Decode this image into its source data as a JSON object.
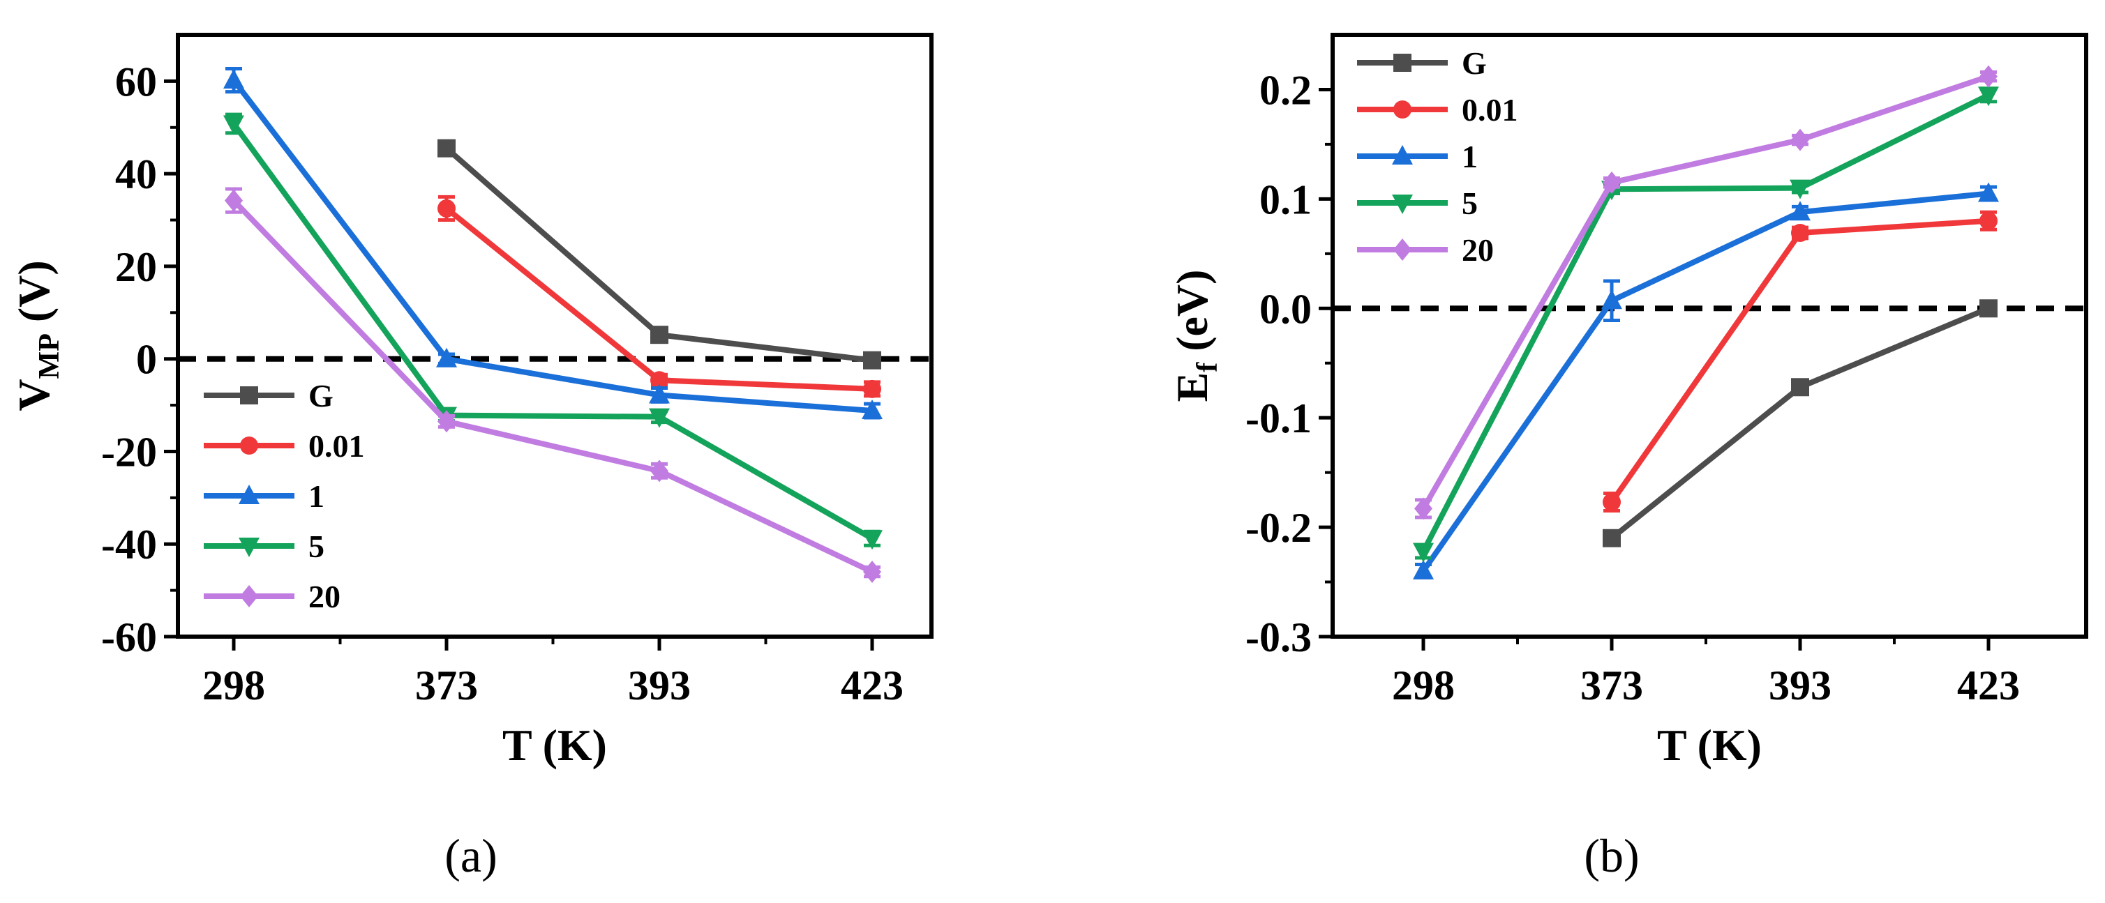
{
  "colors": {
    "G": "#4d4d4d",
    "0.01": "#f0383b",
    "1": "#1a6fd8",
    "5": "#14a35a",
    "20": "#c07ce0",
    "axis": "#000000"
  },
  "chart_data": [
    {
      "type": "line",
      "panel_label": "(a)",
      "title": "",
      "xlabel": "T (K)",
      "ylabel_main": "V",
      "ylabel_sub": "MP",
      "ylabel_unit": " (V)",
      "categories": [
        "298",
        "373",
        "393",
        "423"
      ],
      "ylim": [
        -60,
        70
      ],
      "yticks": [
        -60,
        -40,
        -20,
        0,
        20,
        40,
        60
      ],
      "ytick_labels": [
        "-60",
        "-40",
        "-20",
        "0",
        "20",
        "40",
        "60"
      ],
      "reference_line": 0,
      "legend_position": "lower-left",
      "series": [
        {
          "name": "G",
          "marker": "square",
          "values": [
            null,
            45.5,
            5.2,
            -0.3
          ],
          "errors": [
            null,
            1.2,
            1.0,
            0.5
          ]
        },
        {
          "name": "0.01",
          "marker": "circle",
          "values": [
            null,
            32.5,
            -4.6,
            -6.5
          ],
          "errors": [
            null,
            2.5,
            1.2,
            1.5
          ]
        },
        {
          "name": "1",
          "marker": "triangle-up",
          "values": [
            60.2,
            0.0,
            -7.8,
            -11.2
          ],
          "errors": [
            2.5,
            1.0,
            1.5,
            1.5
          ]
        },
        {
          "name": "5",
          "marker": "triangle-down",
          "values": [
            50.8,
            -12.2,
            -12.5,
            -38.8
          ],
          "errors": [
            2.0,
            1.2,
            1.2,
            1.5
          ]
        },
        {
          "name": "20",
          "marker": "diamond",
          "values": [
            34.2,
            -13.5,
            -24.2,
            -46.0
          ],
          "errors": [
            2.5,
            1.2,
            1.5,
            1.0
          ]
        }
      ]
    },
    {
      "type": "line",
      "panel_label": "(b)",
      "title": "",
      "xlabel": "T (K)",
      "ylabel_main": "E",
      "ylabel_sub": "f",
      "ylabel_unit": "  (eV)",
      "categories": [
        "298",
        "373",
        "393",
        "423"
      ],
      "ylim": [
        -0.3,
        0.25
      ],
      "yticks": [
        -0.3,
        -0.2,
        -0.1,
        0.0,
        0.1,
        0.2
      ],
      "ytick_labels": [
        "-0.3",
        "-0.2",
        "-0.1",
        "0.0",
        "0.1",
        "0.2"
      ],
      "reference_line": 0,
      "legend_position": "upper-left",
      "series": [
        {
          "name": "G",
          "marker": "square",
          "values": [
            null,
            -0.21,
            -0.072,
            0.0
          ],
          "errors": [
            null,
            0.004,
            0.004,
            0.003
          ]
        },
        {
          "name": "0.01",
          "marker": "circle",
          "values": [
            null,
            -0.177,
            0.069,
            0.08
          ],
          "errors": [
            null,
            0.008,
            0.005,
            0.008
          ]
        },
        {
          "name": "1",
          "marker": "triangle-up",
          "values": [
            -0.24,
            0.007,
            0.088,
            0.105
          ],
          "errors": [
            0.006,
            0.018,
            0.005,
            0.006
          ]
        },
        {
          "name": "5",
          "marker": "triangle-down",
          "values": [
            -0.222,
            0.109,
            0.11,
            0.195
          ],
          "errors": [
            0.006,
            0.004,
            0.004,
            0.006
          ]
        },
        {
          "name": "20",
          "marker": "diamond",
          "values": [
            -0.183,
            0.115,
            0.154,
            0.212
          ],
          "errors": [
            0.008,
            0.004,
            0.004,
            0.004
          ]
        }
      ]
    }
  ]
}
